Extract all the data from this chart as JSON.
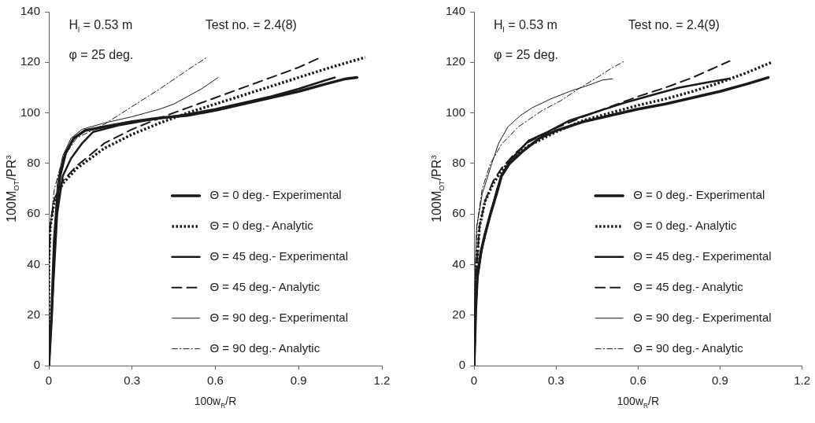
{
  "chart_data": [
    {
      "type": "line",
      "xlabel": "100w$_{R}$/R",
      "ylabel": "100M$_{OT}$/PR$^{3}$",
      "xlim": [
        0,
        1.2
      ],
      "xticks": [
        0,
        0.3,
        0.6,
        0.9,
        1.2
      ],
      "ylim": [
        0,
        140
      ],
      "yticks": [
        0,
        20,
        40,
        60,
        80,
        100,
        120,
        140
      ],
      "grid": false,
      "legend": "right",
      "marker": "none",
      "annotations": [
        "H$_{l}$ = 0.53 m",
        "Test no. = 2.4(8)",
        "φ = 25 deg."
      ],
      "series": [
        {
          "name": "Θ = 0 deg.- Experimental",
          "color": "#1a1a1a",
          "line_style": "solid",
          "x": [
            0,
            0.005,
            0.01,
            0.015,
            0.02,
            0.03,
            0.04,
            0.06,
            0.09,
            0.13,
            0.2,
            0.3,
            0.4,
            0.5,
            0.6,
            0.7,
            0.8,
            0.9,
            1.0,
            1.07,
            1.11
          ],
          "values": [
            0,
            10,
            20,
            35,
            50,
            65,
            75,
            84,
            90,
            93,
            94.5,
            96.5,
            98,
            99,
            101,
            103.5,
            106,
            108.5,
            111.5,
            113.5,
            114
          ]
        },
        {
          "name": "Θ = 0 deg.- Analytic",
          "color": "#1a1a1a",
          "line_style": "dotted",
          "x": [
            0,
            0,
            0.005,
            0.02,
            0.05,
            0.1,
            0.2,
            0.3,
            0.4,
            0.5,
            0.6,
            0.7,
            0.8,
            0.9,
            1.0,
            1.14
          ],
          "values": [
            0,
            40,
            55,
            65,
            72,
            78,
            86,
            91.5,
            96,
            100,
            103.5,
            107,
            110.5,
            114,
            117.5,
            122
          ]
        },
        {
          "name": "Θ = 45 deg.- Experimental",
          "color": "#1a1a1a",
          "line_style": "solid",
          "x": [
            0,
            0.01,
            0.02,
            0.03,
            0.05,
            0.08,
            0.12,
            0.16,
            0.25,
            0.35,
            0.5,
            0.6,
            0.7,
            0.8,
            0.9,
            1.0,
            1.03
          ],
          "values": [
            0,
            20,
            40,
            60,
            75,
            82,
            88,
            92.5,
            95,
            97,
            99.5,
            101.5,
            104,
            106.5,
            109.5,
            113,
            114
          ]
        },
        {
          "name": "Θ = 45 deg.- Analytic",
          "color": "#1a1a1a",
          "line_style": "dashed",
          "x": [
            0,
            0,
            0.005,
            0.02,
            0.05,
            0.1,
            0.2,
            0.3,
            0.4,
            0.5,
            0.6,
            0.7,
            0.8,
            0.9,
            0.98
          ],
          "values": [
            0,
            40,
            55,
            66,
            73,
            79,
            88,
            93.5,
            98,
            102,
            106,
            110,
            114,
            118,
            122
          ]
        },
        {
          "name": "Θ = 90 deg.- Experimental",
          "color": "#1a1a1a",
          "line_style": "solid",
          "x": [
            0,
            0.01,
            0.02,
            0.03,
            0.05,
            0.08,
            0.12,
            0.2,
            0.3,
            0.4,
            0.45,
            0.5,
            0.55,
            0.61
          ],
          "values": [
            0,
            25,
            50,
            72,
            83,
            90,
            93.5,
            96,
            98.5,
            101.5,
            103.5,
            106.5,
            109.5,
            114
          ]
        },
        {
          "name": "Θ = 90 deg.- Analytic",
          "color": "#1a1a1a",
          "line_style": "dashdot",
          "x": [
            0,
            0,
            0.005,
            0.02,
            0.05,
            0.1,
            0.2,
            0.3,
            0.4,
            0.5,
            0.57
          ],
          "values": [
            0,
            40,
            55,
            70,
            82,
            90,
            95.5,
            102.5,
            109.5,
            117,
            122
          ]
        }
      ]
    },
    {
      "type": "line",
      "xlabel": "100w$_{R}$/R",
      "ylabel": "100M$_{OT}$/PR$^{3}$",
      "xlim": [
        0,
        1.2
      ],
      "xticks": [
        0,
        0.3,
        0.6,
        0.9,
        1.2
      ],
      "ylim": [
        0,
        140
      ],
      "yticks": [
        0,
        20,
        40,
        60,
        80,
        100,
        120,
        140
      ],
      "grid": false,
      "legend": "right",
      "marker": "none",
      "annotations": [
        "H$_{l}$ = 0.53 m",
        "Test no. = 2.4(9)",
        "φ = 25 deg."
      ],
      "series": [
        {
          "name": "Θ = 0 deg.- Experimental",
          "color": "#1a1a1a",
          "line_style": "solid",
          "x": [
            0,
            0.003,
            0.006,
            0.012,
            0.025,
            0.04,
            0.06,
            0.085,
            0.1,
            0.13,
            0.18,
            0.24,
            0.3,
            0.4,
            0.5,
            0.6,
            0.7,
            0.8,
            0.9,
            1.0,
            1.076
          ],
          "values": [
            0,
            10,
            22,
            35,
            45,
            52,
            60,
            69,
            75,
            80,
            85,
            90,
            93,
            96.5,
            99,
            101.5,
            103.5,
            106,
            108.5,
            111.5,
            114
          ]
        },
        {
          "name": "Θ = 0 deg.- Analytic",
          "color": "#1a1a1a",
          "line_style": "dotted",
          "x": [
            0,
            0.003,
            0.01,
            0.02,
            0.04,
            0.07,
            0.1,
            0.15,
            0.2,
            0.3,
            0.4,
            0.5,
            0.6,
            0.7,
            0.8,
            0.9,
            1.0,
            1.088
          ],
          "values": [
            0,
            20,
            40,
            55,
            65,
            72,
            77,
            83,
            87,
            92.5,
            97,
            100,
            103,
            105.5,
            108.5,
            112,
            116,
            120
          ]
        },
        {
          "name": "Θ = 45 deg.- Experimental",
          "color": "#1a1a1a",
          "line_style": "solid",
          "x": [
            0,
            0.006,
            0.012,
            0.03,
            0.06,
            0.085,
            0.1,
            0.13,
            0.2,
            0.27,
            0.35,
            0.45,
            0.55,
            0.65,
            0.75,
            0.85,
            0.93
          ],
          "values": [
            0,
            22,
            35,
            47,
            60,
            70,
            75,
            81,
            89,
            92.5,
            97,
            100.5,
            104,
            107,
            110,
            112,
            113.5
          ]
        },
        {
          "name": "Θ = 45 deg.- Analytic",
          "color": "#1a1a1a",
          "line_style": "dashed",
          "x": [
            0,
            0.003,
            0.01,
            0.02,
            0.04,
            0.07,
            0.1,
            0.15,
            0.2,
            0.3,
            0.4,
            0.5,
            0.6,
            0.7,
            0.8,
            0.935
          ],
          "values": [
            0,
            20,
            40,
            55,
            65,
            73,
            78,
            84,
            88.5,
            94,
            98.5,
            102.5,
            106.5,
            110,
            114,
            120.5
          ]
        },
        {
          "name": "Θ = 90 deg.- Experimental",
          "color": "#1a1a1a",
          "line_style": "solid",
          "x": [
            0,
            0.002,
            0.005,
            0.01,
            0.03,
            0.065,
            0.09,
            0.124,
            0.17,
            0.212,
            0.28,
            0.35,
            0.42,
            0.47,
            0.507
          ],
          "values": [
            0,
            20,
            40,
            55,
            68,
            80,
            88,
            94.5,
            99,
            102,
            105.5,
            108.5,
            111,
            113,
            113.5
          ]
        },
        {
          "name": "Θ = 90 deg.- Analytic",
          "color": "#1a1a1a",
          "line_style": "dashdot",
          "x": [
            0,
            0.002,
            0.005,
            0.01,
            0.03,
            0.06,
            0.1,
            0.162,
            0.25,
            0.32,
            0.389,
            0.45,
            0.5,
            0.551
          ],
          "values": [
            0,
            20,
            40,
            55,
            70,
            80,
            87.5,
            94.5,
            101,
            105,
            110,
            114,
            117.5,
            120.5
          ]
        }
      ]
    }
  ]
}
